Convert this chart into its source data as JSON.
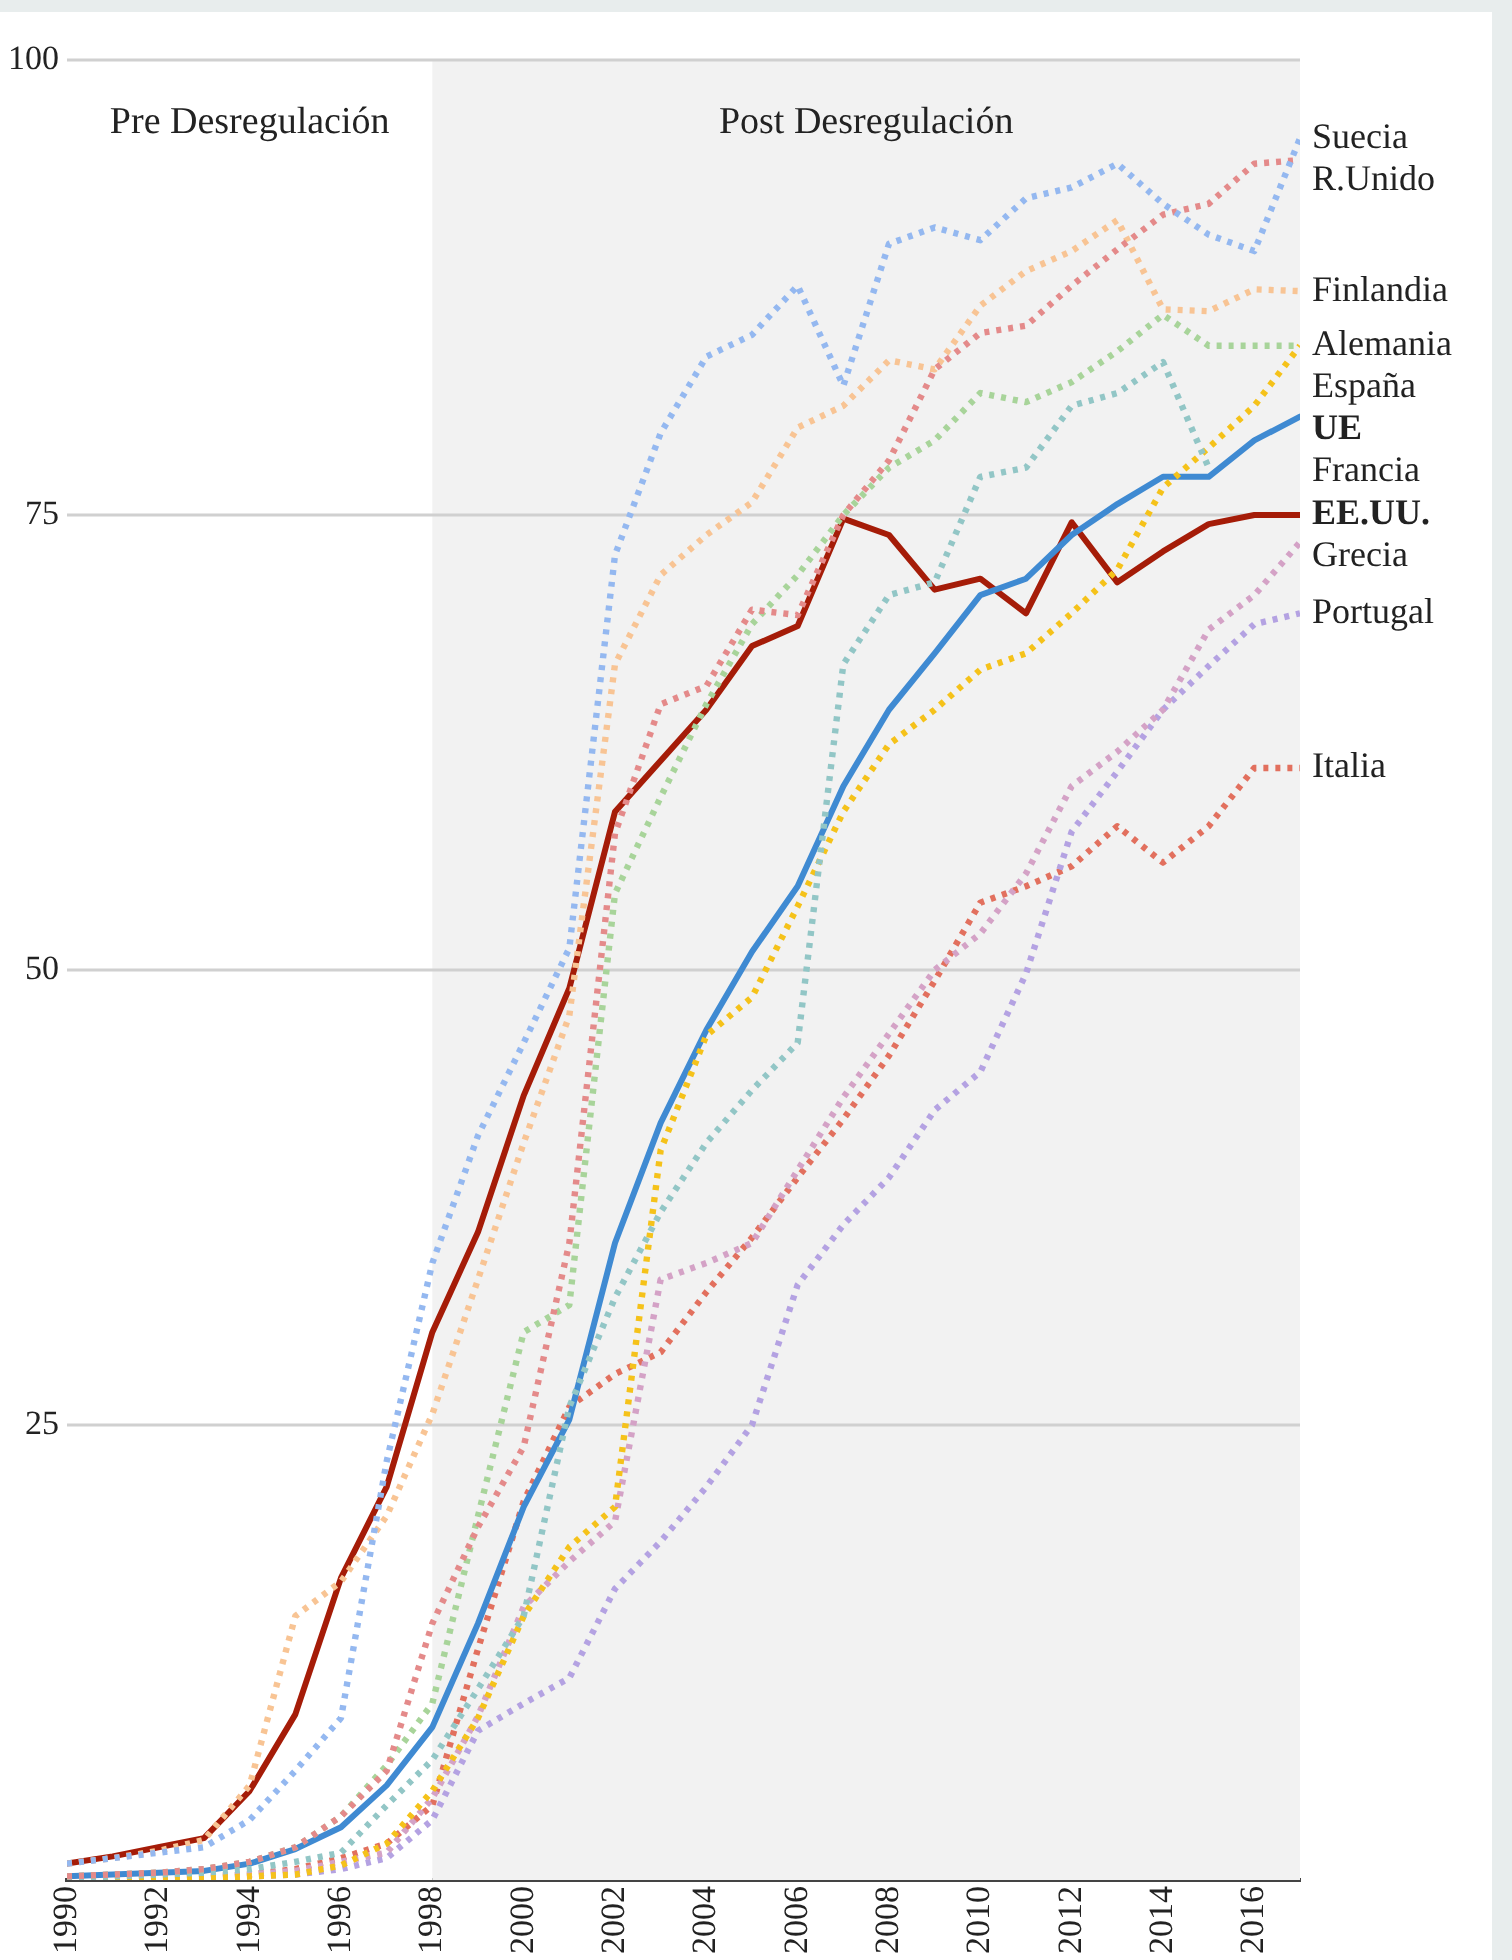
{
  "chart_data": {
    "type": "line",
    "x": [
      1990,
      1991,
      1992,
      1993,
      1994,
      1995,
      1996,
      1997,
      1998,
      1999,
      2000,
      2001,
      2002,
      2003,
      2004,
      2005,
      2006,
      2007,
      2008,
      2009,
      2010,
      2011,
      2012,
      2013,
      2014,
      2015,
      2016,
      2017
    ],
    "xlim": [
      1990,
      2017
    ],
    "xticks": [
      1990,
      1992,
      1994,
      1996,
      1998,
      2000,
      2002,
      2004,
      2006,
      2008,
      2010,
      2012,
      2014,
      2016
    ],
    "ylim": [
      0,
      100
    ],
    "yticks": [
      25,
      50,
      75,
      100
    ],
    "grid": "y",
    "legend": false,
    "marker": "none",
    "bands": [
      {
        "axis": "x",
        "from": 1990,
        "to": 1998,
        "label": "Pre Desregulación",
        "color": "#ffffff"
      },
      {
        "axis": "x",
        "from": 1998,
        "to": 2017,
        "label": "Post Desregulación",
        "color": "#f2f2f2"
      }
    ],
    "series": [
      {
        "name": "Suecia",
        "color": "#94b8f0",
        "line_style": "dotted",
        "values": [
          0.9,
          1.2,
          1.5,
          1.8,
          3.3,
          6,
          8.9,
          23,
          33.9,
          40.9,
          46,
          51.2,
          72.8,
          79.5,
          83.7,
          84.9,
          87.6,
          82.1,
          89.9,
          90.8,
          90.1,
          92.4,
          93,
          94.3,
          92.1,
          90.4,
          89.5,
          95.7
        ]
      },
      {
        "name": "R.Unido",
        "color": "#e48a8a",
        "line_style": "dotted",
        "values": [
          0.2,
          0.3,
          0.4,
          0.6,
          1,
          1.8,
          3.5,
          6,
          14.1,
          19.4,
          23.8,
          35,
          57.5,
          64.6,
          65.6,
          69.8,
          69.5,
          75,
          78,
          83,
          85,
          85.4,
          87.6,
          89.6,
          91.5,
          92.1,
          94.3,
          94.5
        ]
      },
      {
        "name": "Finlandia",
        "color": "#f8c494",
        "line_style": "dotted",
        "values": [
          0.9,
          1.2,
          1.6,
          2.2,
          5.2,
          14.5,
          16.4,
          20,
          25.6,
          33,
          40.5,
          47.5,
          66.8,
          71.7,
          73.9,
          75.7,
          79.8,
          81,
          83.5,
          83,
          86.5,
          88.4,
          89.5,
          91.2,
          86.3,
          86.2,
          87.4,
          87.3
        ]
      },
      {
        "name": "Alemania",
        "color": "#a8d49a",
        "line_style": "dotted",
        "values": [
          0.2,
          0.3,
          0.4,
          0.6,
          1,
          1.8,
          3.5,
          6.3,
          9.7,
          20,
          30.1,
          31.6,
          54.2,
          59.5,
          64.6,
          69,
          71.7,
          75,
          77.6,
          79.1,
          81.7,
          81.2,
          82.3,
          84,
          86,
          84.3,
          84.3,
          84.3
        ]
      },
      {
        "name": "Francia",
        "color": "#92c6c6",
        "line_style": "dotted",
        "values": [
          0.1,
          0.2,
          0.3,
          0.4,
          0.6,
          1,
          1.5,
          4.1,
          6.6,
          10.5,
          14.5,
          26,
          32,
          36.7,
          40.5,
          43.4,
          46,
          66.8,
          70.6,
          71.3,
          77.1,
          77.6,
          81,
          81.7,
          83.4,
          77.6,
          null,
          null
        ]
      },
      {
        "name": "España",
        "color": "#f5c21a",
        "line_style": "dotted",
        "values": [
          0,
          0,
          0.1,
          0.1,
          0.2,
          0.3,
          0.8,
          2,
          4.9,
          8.9,
          14.5,
          18.3,
          20.5,
          40.1,
          46.4,
          48.5,
          53.5,
          58.7,
          62.4,
          64.3,
          66.5,
          67.4,
          69.6,
          72,
          76.5,
          78.7,
          81,
          84.3
        ]
      },
      {
        "name": "UE",
        "color": "#3f8ad2",
        "line_style": "solid",
        "values": [
          0.2,
          0.3,
          0.4,
          0.5,
          0.9,
          1.7,
          2.9,
          5.2,
          8.4,
          14.1,
          20.5,
          25.3,
          35,
          41.6,
          46.7,
          51,
          54.6,
          60.1,
          64.3,
          67.4,
          70.6,
          71.5,
          73.9,
          75.6,
          77.1,
          77.1,
          79.1,
          80.4
        ]
      },
      {
        "name": "EE.UU.",
        "color": "#a51c08",
        "line_style": "solid",
        "values": [
          0.9,
          1.3,
          1.8,
          2.3,
          4.9,
          9.1,
          16.6,
          21.6,
          30.1,
          35.6,
          43.1,
          49,
          58.7,
          61.5,
          64.3,
          67.8,
          68.9,
          74.8,
          73.9,
          70.9,
          71.5,
          69.6,
          74.6,
          71.3,
          73,
          74.5,
          75,
          75
        ]
      },
      {
        "name": "Grecia",
        "color": "#d4a2c6",
        "line_style": "dotted",
        "values": [
          0,
          0.1,
          0.1,
          0.2,
          0.3,
          0.5,
          1,
          1.5,
          4.5,
          9,
          15,
          17.5,
          19.7,
          33,
          33.9,
          35,
          39,
          43,
          46.5,
          50,
          52,
          55.3,
          60.1,
          62,
          64.3,
          68.7,
          70.6,
          73.5
        ]
      },
      {
        "name": "Portugal",
        "color": "#b4a2e2",
        "line_style": "dotted",
        "values": [
          0,
          0,
          0.1,
          0.1,
          0.2,
          0.3,
          0.6,
          1.2,
          3.3,
          8.2,
          9.7,
          11.1,
          16,
          18.6,
          21.6,
          25,
          32.7,
          36,
          38.6,
          42.3,
          44.4,
          49.8,
          57.6,
          60.9,
          64.3,
          66.7,
          69,
          69.6
        ]
      },
      {
        "name": "Italia",
        "color": "#e2705e",
        "line_style": "dotted",
        "values": [
          0,
          0,
          0.1,
          0.2,
          0.3,
          0.6,
          1.2,
          2,
          4.1,
          12.7,
          20.8,
          26,
          27.8,
          29,
          32.3,
          35.3,
          38.6,
          41.8,
          45.3,
          49.4,
          53.7,
          54.6,
          55.7,
          57.9,
          55.9,
          57.9,
          61.1,
          61.1
        ]
      }
    ]
  }
}
